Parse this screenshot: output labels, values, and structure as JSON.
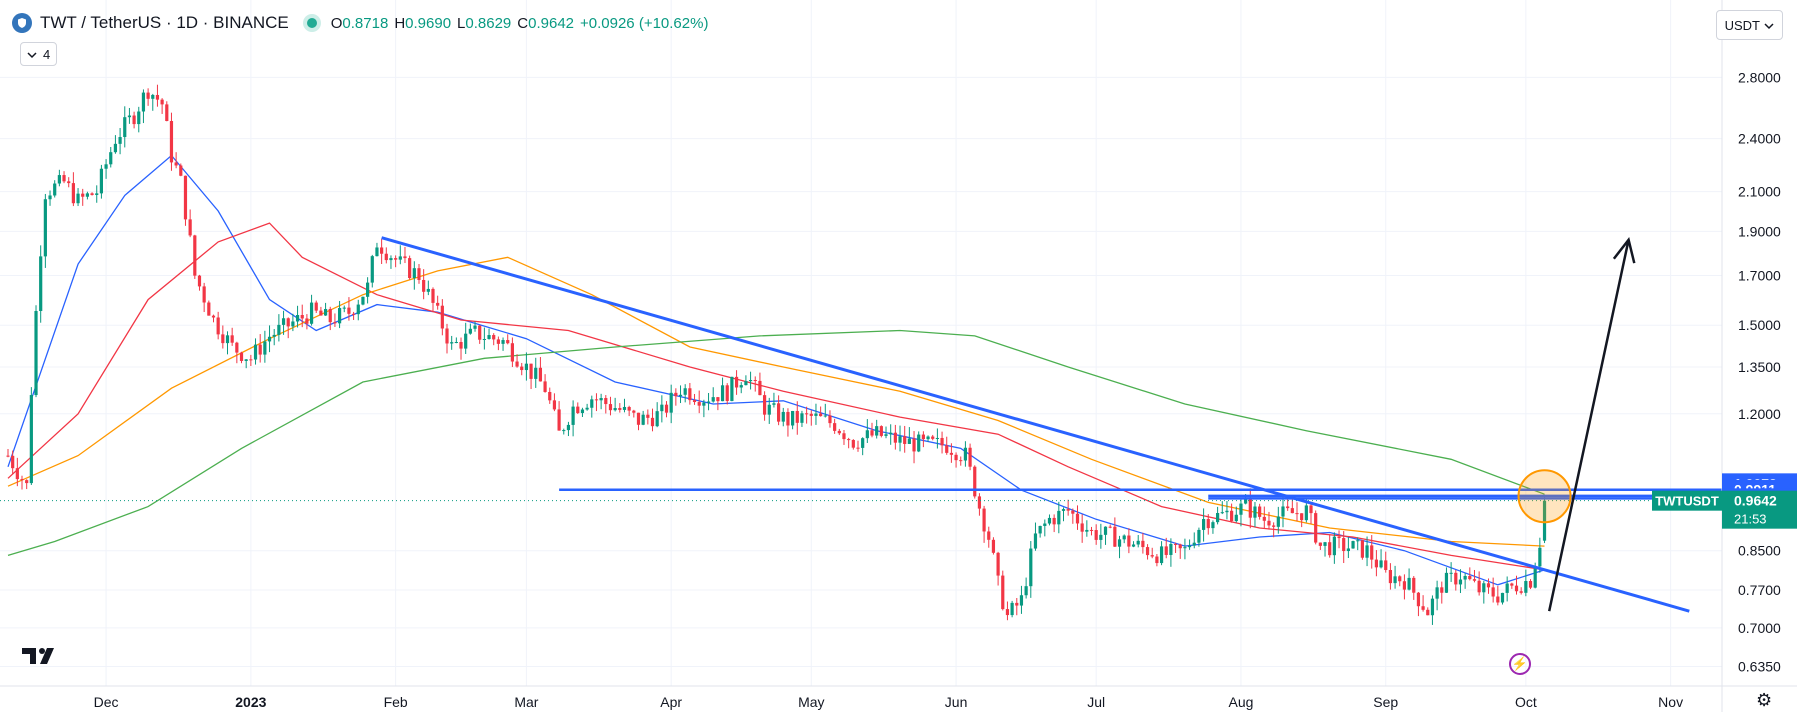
{
  "header": {
    "symbol_title": "TWT / TetherUS · 1D · BINANCE",
    "ohlc": [
      {
        "key": "O",
        "value": "0.8718"
      },
      {
        "key": "H",
        "value": "0.9690"
      },
      {
        "key": "L",
        "value": "0.8629"
      },
      {
        "key": "C",
        "value": "0.9642"
      }
    ],
    "change": "+0.0926 (+10.62%)",
    "indicator_count": "4",
    "currency": "USDT"
  },
  "colors": {
    "up": "#089981",
    "down": "#f23645",
    "trendline": "#2962ff",
    "ma20": "#2962ff",
    "ma50": "#f23645",
    "ma100": "#ff9800",
    "ma200": "#4caf50",
    "highlight": "#ff9800"
  },
  "chart_data": {
    "type": "candlestick",
    "y_scale": "log",
    "ylim": [
      0.62,
      3.0
    ],
    "y_ticks": [
      "2.8000",
      "2.4000",
      "2.1000",
      "1.9000",
      "1.7000",
      "1.5000",
      "1.3500",
      "1.2000",
      "0.8500",
      "0.7700",
      "0.7000",
      "0.6350"
    ],
    "x_range": [
      "2022-11-10",
      "2023-11-12"
    ],
    "x_ticks": [
      {
        "date": "2022-12-01",
        "label": "Dec"
      },
      {
        "date": "2023-01-01",
        "label": "2023"
      },
      {
        "date": "2023-02-01",
        "label": "Feb"
      },
      {
        "date": "2023-03-01",
        "label": "Mar"
      },
      {
        "date": "2023-04-01",
        "label": "Apr"
      },
      {
        "date": "2023-05-01",
        "label": "May"
      },
      {
        "date": "2023-06-01",
        "label": "Jun"
      },
      {
        "date": "2023-07-01",
        "label": "Jul"
      },
      {
        "date": "2023-08-01",
        "label": "Aug"
      },
      {
        "date": "2023-09-01",
        "label": "Sep"
      },
      {
        "date": "2023-10-01",
        "label": "Oct"
      },
      {
        "date": "2023-11-01",
        "label": "Nov"
      }
    ],
    "price_path": [
      [
        "2022-11-10",
        1.08
      ],
      [
        "2022-11-14",
        1.0
      ],
      [
        "2022-11-16",
        1.55
      ],
      [
        "2022-11-18",
        2.1
      ],
      [
        "2022-11-22",
        2.15
      ],
      [
        "2022-11-25",
        2.05
      ],
      [
        "2022-11-29",
        2.1
      ],
      [
        "2022-12-03",
        2.4
      ],
      [
        "2022-12-07",
        2.55
      ],
      [
        "2022-12-10",
        2.72
      ],
      [
        "2022-12-13",
        2.62
      ],
      [
        "2022-12-15",
        2.3
      ],
      [
        "2022-12-17",
        2.15
      ],
      [
        "2022-12-20",
        1.7
      ],
      [
        "2022-12-24",
        1.52
      ],
      [
        "2022-12-28",
        1.42
      ],
      [
        "2023-01-01",
        1.38
      ],
      [
        "2023-01-05",
        1.46
      ],
      [
        "2023-01-09",
        1.5
      ],
      [
        "2023-01-14",
        1.55
      ],
      [
        "2023-01-18",
        1.52
      ],
      [
        "2023-01-22",
        1.55
      ],
      [
        "2023-01-26",
        1.65
      ],
      [
        "2023-01-28",
        1.85
      ],
      [
        "2023-02-02",
        1.75
      ],
      [
        "2023-02-06",
        1.7
      ],
      [
        "2023-02-09",
        1.58
      ],
      [
        "2023-02-13",
        1.42
      ],
      [
        "2023-02-18",
        1.47
      ],
      [
        "2023-02-24",
        1.44
      ],
      [
        "2023-03-01",
        1.35
      ],
      [
        "2023-03-05",
        1.28
      ],
      [
        "2023-03-08",
        1.14
      ],
      [
        "2023-03-11",
        1.22
      ],
      [
        "2023-03-15",
        1.25
      ],
      [
        "2023-03-20",
        1.22
      ],
      [
        "2023-03-25",
        1.18
      ],
      [
        "2023-03-30",
        1.2
      ],
      [
        "2023-04-03",
        1.28
      ],
      [
        "2023-04-08",
        1.25
      ],
      [
        "2023-04-13",
        1.27
      ],
      [
        "2023-04-17",
        1.33
      ],
      [
        "2023-04-21",
        1.22
      ],
      [
        "2023-04-26",
        1.18
      ],
      [
        "2023-05-01",
        1.19
      ],
      [
        "2023-05-06",
        1.17
      ],
      [
        "2023-05-10",
        1.12
      ],
      [
        "2023-05-15",
        1.14
      ],
      [
        "2023-05-20",
        1.12
      ],
      [
        "2023-05-25",
        1.11
      ],
      [
        "2023-05-30",
        1.11
      ],
      [
        "2023-06-03",
        1.08
      ],
      [
        "2023-06-06",
        0.95
      ],
      [
        "2023-06-08",
        0.88
      ],
      [
        "2023-06-10",
        0.78
      ],
      [
        "2023-06-12",
        0.72
      ],
      [
        "2023-06-15",
        0.75
      ],
      [
        "2023-06-18",
        0.88
      ],
      [
        "2023-06-21",
        0.92
      ],
      [
        "2023-06-25",
        0.94
      ],
      [
        "2023-06-30",
        0.89
      ],
      [
        "2023-07-05",
        0.88
      ],
      [
        "2023-07-10",
        0.86
      ],
      [
        "2023-07-15",
        0.84
      ],
      [
        "2023-07-20",
        0.85
      ],
      [
        "2023-07-24",
        0.92
      ],
      [
        "2023-07-28",
        0.93
      ],
      [
        "2023-08-02",
        0.95
      ],
      [
        "2023-08-06",
        0.92
      ],
      [
        "2023-08-10",
        0.93
      ],
      [
        "2023-08-15",
        0.94
      ],
      [
        "2023-08-18",
        0.86
      ],
      [
        "2023-08-23",
        0.86
      ],
      [
        "2023-08-28",
        0.85
      ],
      [
        "2023-09-01",
        0.8
      ],
      [
        "2023-09-05",
        0.79
      ],
      [
        "2023-09-10",
        0.73
      ],
      [
        "2023-09-13",
        0.78
      ],
      [
        "2023-09-17",
        0.8
      ],
      [
        "2023-09-21",
        0.77
      ],
      [
        "2023-09-25",
        0.76
      ],
      [
        "2023-09-29",
        0.78
      ],
      [
        "2023-10-02",
        0.79
      ],
      [
        "2023-10-03",
        0.83
      ],
      [
        "2023-10-04",
        0.87
      ],
      [
        "2023-10-05",
        0.9642
      ]
    ],
    "moving_averages": [
      {
        "color": "#2962ff",
        "points": [
          [
            "2022-11-10",
            1.05
          ],
          [
            "2022-11-25",
            1.75
          ],
          [
            "2022-12-05",
            2.08
          ],
          [
            "2022-12-15",
            2.3
          ],
          [
            "2022-12-25",
            2.0
          ],
          [
            "2023-01-05",
            1.6
          ],
          [
            "2023-01-15",
            1.48
          ],
          [
            "2023-01-28",
            1.58
          ],
          [
            "2023-02-10",
            1.55
          ],
          [
            "2023-03-01",
            1.45
          ],
          [
            "2023-03-20",
            1.3
          ],
          [
            "2023-04-10",
            1.23
          ],
          [
            "2023-04-25",
            1.24
          ],
          [
            "2023-05-15",
            1.15
          ],
          [
            "2023-06-02",
            1.1
          ],
          [
            "2023-06-15",
            0.99
          ],
          [
            "2023-07-01",
            0.92
          ],
          [
            "2023-07-20",
            0.86
          ],
          [
            "2023-08-05",
            0.88
          ],
          [
            "2023-08-20",
            0.89
          ],
          [
            "2023-09-05",
            0.85
          ],
          [
            "2023-09-25",
            0.78
          ],
          [
            "2023-10-05",
            0.81
          ]
        ]
      },
      {
        "color": "#f23645",
        "points": [
          [
            "2022-11-10",
            1.02
          ],
          [
            "2022-11-25",
            1.2
          ],
          [
            "2022-12-10",
            1.6
          ],
          [
            "2022-12-25",
            1.85
          ],
          [
            "2023-01-05",
            1.94
          ],
          [
            "2023-01-12",
            1.78
          ],
          [
            "2023-01-28",
            1.62
          ],
          [
            "2023-02-15",
            1.52
          ],
          [
            "2023-03-10",
            1.48
          ],
          [
            "2023-04-05",
            1.35
          ],
          [
            "2023-04-25",
            1.27
          ],
          [
            "2023-05-20",
            1.19
          ],
          [
            "2023-06-10",
            1.14
          ],
          [
            "2023-06-25",
            1.05
          ],
          [
            "2023-07-15",
            0.95
          ],
          [
            "2023-08-05",
            0.9
          ],
          [
            "2023-08-25",
            0.88
          ],
          [
            "2023-09-15",
            0.84
          ],
          [
            "2023-10-05",
            0.81
          ]
        ]
      },
      {
        "color": "#ff9800",
        "points": [
          [
            "2022-11-10",
            1.0
          ],
          [
            "2022-11-25",
            1.08
          ],
          [
            "2022-12-15",
            1.28
          ],
          [
            "2023-01-05",
            1.45
          ],
          [
            "2023-01-25",
            1.62
          ],
          [
            "2023-02-10",
            1.72
          ],
          [
            "2023-02-25",
            1.78
          ],
          [
            "2023-03-15",
            1.62
          ],
          [
            "2023-04-05",
            1.42
          ],
          [
            "2023-04-25",
            1.35
          ],
          [
            "2023-05-20",
            1.27
          ],
          [
            "2023-06-10",
            1.18
          ],
          [
            "2023-06-30",
            1.07
          ],
          [
            "2023-07-25",
            0.96
          ],
          [
            "2023-08-20",
            0.9
          ],
          [
            "2023-09-15",
            0.87
          ],
          [
            "2023-10-05",
            0.86
          ]
        ]
      },
      {
        "color": "#4caf50",
        "points": [
          [
            "2022-11-10",
            0.84
          ],
          [
            "2022-11-20",
            0.87
          ],
          [
            "2022-12-10",
            0.95
          ],
          [
            "2022-12-30",
            1.1
          ],
          [
            "2023-01-25",
            1.3
          ],
          [
            "2023-02-20",
            1.38
          ],
          [
            "2023-03-20",
            1.42
          ],
          [
            "2023-04-20",
            1.46
          ],
          [
            "2023-05-20",
            1.48
          ],
          [
            "2023-06-05",
            1.46
          ],
          [
            "2023-06-25",
            1.35
          ],
          [
            "2023-07-20",
            1.23
          ],
          [
            "2023-08-15",
            1.15
          ],
          [
            "2023-09-15",
            1.07
          ],
          [
            "2023-10-05",
            0.98
          ]
        ]
      }
    ],
    "drawings": [
      {
        "kind": "trendline",
        "color": "#2962ff",
        "from": [
          "2023-01-29",
          1.87
        ],
        "to": [
          "2023-11-05",
          0.73
        ]
      },
      {
        "kind": "hline",
        "color": "#2962ff",
        "from": [
          "2023-03-08",
          0.991
        ],
        "to": [
          "2023-11-12",
          0.991
        ]
      },
      {
        "kind": "hline",
        "color": "#2962ff",
        "from": [
          "2023-07-25",
          0.9699
        ],
        "to": [
          "2023-11-12",
          0.9699
        ]
      },
      {
        "kind": "hline",
        "color": "#2962ff",
        "from": [
          "2023-07-25",
          0.976
        ],
        "to": [
          "2023-11-12",
          0.976
        ]
      },
      {
        "kind": "arrow",
        "color": "#131722",
        "from": [
          "2023-10-06",
          0.73
        ],
        "to": [
          "2023-10-23",
          1.86
        ]
      },
      {
        "kind": "circle",
        "color": "#ff9800",
        "at": [
          "2023-10-05",
          0.975
        ]
      }
    ],
    "price_labels": [
      {
        "text": "1.0072",
        "value": 1.0072,
        "bg": "#2962ff",
        "fg": "#ffffff"
      },
      {
        "text": "0.9911",
        "value": 0.9911,
        "bg": "#2962ff",
        "fg": "#ffffff"
      },
      {
        "text": "0.9699",
        "value": 0.9699,
        "bg": "#2962ff",
        "fg": "#ffffff"
      },
      {
        "text": "0.9642",
        "value": 0.9642,
        "bg": "#089981",
        "fg": "#ffffff",
        "tag": "TWTUSDT",
        "sub": "21:53"
      }
    ]
  }
}
